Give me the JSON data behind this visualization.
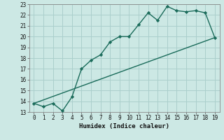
{
  "xlabel": "Humidex (Indice chaleur)",
  "ylabel": "",
  "bg_color": "#cce8e4",
  "grid_color": "#aacfcc",
  "line_color": "#1a6b5a",
  "line1_x": [
    0,
    1,
    2,
    3,
    4,
    5,
    6,
    7,
    8,
    9,
    10,
    11,
    12,
    13,
    14,
    15,
    16,
    17,
    18,
    19
  ],
  "line1_y": [
    13.8,
    13.5,
    13.8,
    13.1,
    14.4,
    17.0,
    17.8,
    18.3,
    19.5,
    20.0,
    20.0,
    21.1,
    22.2,
    21.5,
    22.8,
    22.4,
    22.3,
    22.4,
    22.2,
    19.9
  ],
  "line2_x": [
    0,
    19
  ],
  "line2_y": [
    13.8,
    19.9
  ],
  "xlim": [
    -0.5,
    19.5
  ],
  "ylim": [
    13,
    23
  ],
  "xticks": [
    0,
    1,
    2,
    3,
    4,
    5,
    6,
    7,
    8,
    9,
    10,
    11,
    12,
    13,
    14,
    15,
    16,
    17,
    18,
    19
  ],
  "yticks": [
    13,
    14,
    15,
    16,
    17,
    18,
    19,
    20,
    21,
    22,
    23
  ],
  "xlabel_fontsize": 6.5,
  "tick_fontsize": 5.5
}
